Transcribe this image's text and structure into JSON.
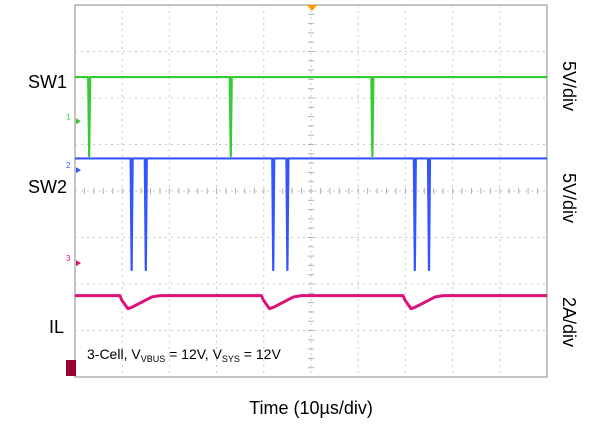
{
  "chart_data": {
    "type": "line",
    "xlabel": "Time (10µs/div)",
    "x_divisions": 10,
    "y_divisions": 8,
    "grid": true,
    "series": [
      {
        "name": "SW1",
        "scale_label": "5V/div",
        "color": "#33cc33",
        "marker_id": "1",
        "baseline_div": 1.55,
        "events": [
          {
            "x_div": 0.3,
            "to_div": 3.25
          },
          {
            "x_div": 3.3,
            "to_div": 3.25
          },
          {
            "x_div": 6.3,
            "to_div": 3.25
          }
        ]
      },
      {
        "name": "SW2",
        "scale_label": "5V/div",
        "color": "#3355ff",
        "marker_id": "2",
        "baseline_div": 3.3,
        "events": [
          {
            "x_div": 1.2,
            "to_div": 5.7
          },
          {
            "x_div": 1.5,
            "to_div": 5.7
          },
          {
            "x_div": 4.2,
            "to_div": 5.7
          },
          {
            "x_div": 4.5,
            "to_div": 5.7
          },
          {
            "x_div": 7.2,
            "to_div": 5.7
          },
          {
            "x_div": 7.5,
            "to_div": 5.7
          }
        ]
      },
      {
        "name": "IL",
        "scale_label": "2A/div",
        "color": "#dd1177",
        "marker_id": "3",
        "baseline_div": 6.25,
        "events": [
          {
            "x_div": 0.95
          },
          {
            "x_div": 3.95
          },
          {
            "x_div": 6.95
          }
        ]
      }
    ],
    "annotation": {
      "prefix": "3-Cell, V",
      "sub1": "VBUS",
      "mid": " = 12V, V",
      "sub2": "SYS",
      "suffix": " = 12V"
    }
  }
}
